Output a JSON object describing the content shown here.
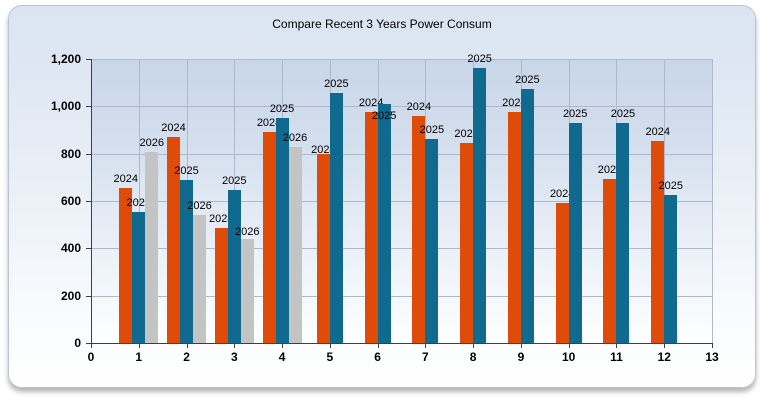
{
  "chart_data": {
    "type": "bar",
    "title": "Compare Recent 3 Years Power Consum",
    "categories": [
      1,
      2,
      3,
      4,
      5,
      6,
      7,
      8,
      9,
      10,
      11,
      12
    ],
    "series": [
      {
        "name": "2024",
        "color": "#df4b08",
        "values": [
          655,
          870,
          485,
          890,
          800,
          975,
          960,
          845,
          975,
          590,
          695,
          855
        ]
      },
      {
        "name": "2025",
        "color": "#10698f",
        "values": [
          555,
          690,
          645,
          950,
          1055,
          1010,
          860,
          1160,
          1075,
          930,
          930,
          625
        ]
      },
      {
        "name": "2026",
        "color": "#c4c4c4",
        "values": [
          805,
          540,
          440,
          830,
          null,
          null,
          null,
          null,
          null,
          null,
          null,
          null
        ]
      }
    ],
    "point_labels": "series year shown above each bar",
    "xlabel": "",
    "ylabel": "",
    "xlim": [
      0,
      13
    ],
    "ylim": [
      0,
      1200
    ],
    "x_ticks": [
      0,
      1,
      2,
      3,
      4,
      5,
      6,
      7,
      8,
      9,
      10,
      11,
      12,
      13
    ],
    "y_ticks": [
      0,
      200,
      400,
      600,
      800,
      1000,
      1200
    ],
    "y_tick_labels": [
      "0",
      "200",
      "400",
      "600",
      "800",
      "1,000",
      "1,200"
    ],
    "grid": true,
    "legend": "none"
  }
}
